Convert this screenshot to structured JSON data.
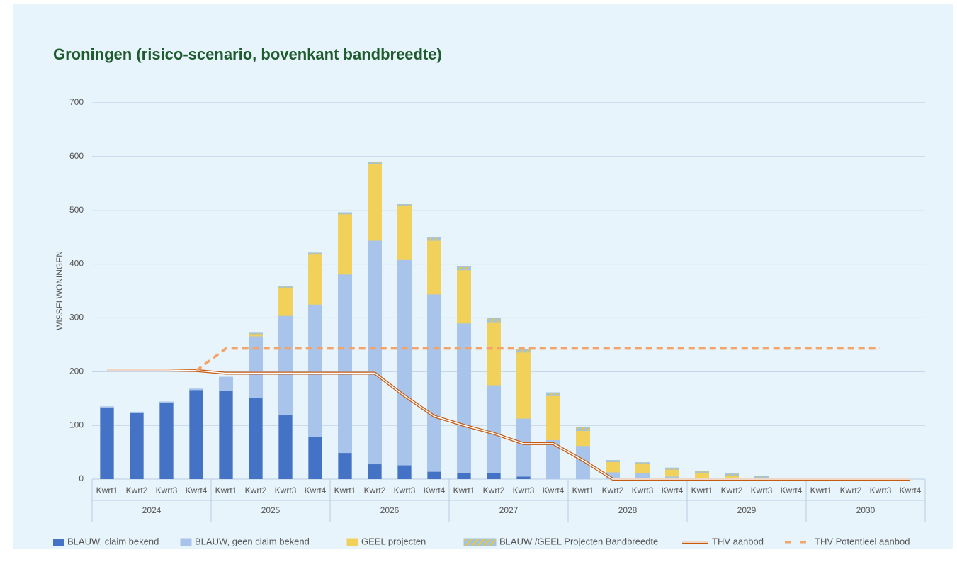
{
  "chart_data": {
    "type": "stacked_bar_line",
    "title": "Groningen (risico-scenario, bovenkant bandbreedte)",
    "y_label": "WISSELWONINGEN",
    "categories": [
      "Kwrt1",
      "Kwrt2",
      "Kwrt3",
      "Kwrt4",
      "Kwrt1",
      "Kwrt2",
      "Kwrt3",
      "Kwrt4",
      "Kwrt1",
      "Kwrt2",
      "Kwrt3",
      "Kwrt4",
      "Kwrt1",
      "Kwrt2",
      "Kwrt3",
      "Kwrt4",
      "Kwrt1",
      "Kwrt2",
      "Kwrt3",
      "Kwrt4",
      "Kwrt1",
      "Kwrt2",
      "Kwrt3",
      "Kwrt4",
      "Kwrt1",
      "Kwrt2",
      "Kwrt3",
      "Kwrt4"
    ],
    "years": [
      "2024",
      "2025",
      "2026",
      "2027",
      "2028",
      "2029",
      "2030"
    ],
    "ylim": [
      0,
      700
    ],
    "yticks": [
      0,
      100,
      200,
      300,
      400,
      500,
      600,
      700
    ],
    "grid": true,
    "series": [
      {
        "name": "BLAUW, claim bekend",
        "kind": "bar",
        "color": "#4472c4",
        "values": [
          133,
          123,
          142,
          166,
          165,
          151,
          119,
          79,
          49,
          28,
          26,
          14,
          12,
          12,
          5,
          0,
          0,
          0,
          0,
          0,
          0,
          0,
          0,
          0,
          0,
          0,
          0,
          0
        ]
      },
      {
        "name": "BLAUW, geen claim bekend",
        "kind": "bar",
        "color": "#a9c4eb",
        "values": [
          2,
          2,
          2,
          2,
          25,
          115,
          185,
          246,
          332,
          416,
          382,
          330,
          278,
          163,
          108,
          73,
          62,
          13,
          11,
          5,
          2,
          2,
          2,
          1,
          1,
          0,
          0,
          0
        ]
      },
      {
        "name": "GEEL projecten",
        "kind": "bar",
        "color": "#f2d15a",
        "values": [
          0,
          0,
          0,
          0,
          0,
          4,
          51,
          93,
          112,
          143,
          100,
          100,
          99,
          116,
          123,
          82,
          28,
          19,
          17,
          13,
          10,
          5,
          1,
          0,
          0,
          0,
          0,
          0
        ]
      },
      {
        "name": "BLAUW /GEEL Projecten Bandbreedte",
        "kind": "bar",
        "color": "#9dc3e6",
        "pattern": "hatched",
        "pattern_color": "#e8c547",
        "values": [
          0,
          0,
          0,
          0,
          0,
          2,
          3,
          3,
          3,
          3,
          3,
          5,
          6,
          8,
          6,
          6,
          7,
          3,
          3,
          3,
          3,
          3,
          2,
          1,
          1,
          0,
          0,
          0
        ]
      },
      {
        "name": "THV aanbod",
        "kind": "line",
        "color": "#c55a11",
        "style": "double",
        "values": [
          203,
          203,
          203,
          202,
          197,
          197,
          197,
          197,
          197,
          197,
          155,
          117,
          100,
          85,
          66,
          66,
          35,
          0,
          0,
          0,
          0,
          0,
          0,
          0,
          0,
          0,
          0,
          0
        ]
      },
      {
        "name": "THV Potentieel aanbod",
        "kind": "line",
        "color": "#f4a46a",
        "style": "dashed",
        "values": [
          null,
          null,
          null,
          202,
          243,
          243,
          243,
          243,
          243,
          243,
          243,
          243,
          243,
          243,
          243,
          243,
          243,
          243,
          243,
          243,
          243,
          243,
          243,
          243,
          243,
          243,
          243,
          null
        ]
      }
    ]
  }
}
